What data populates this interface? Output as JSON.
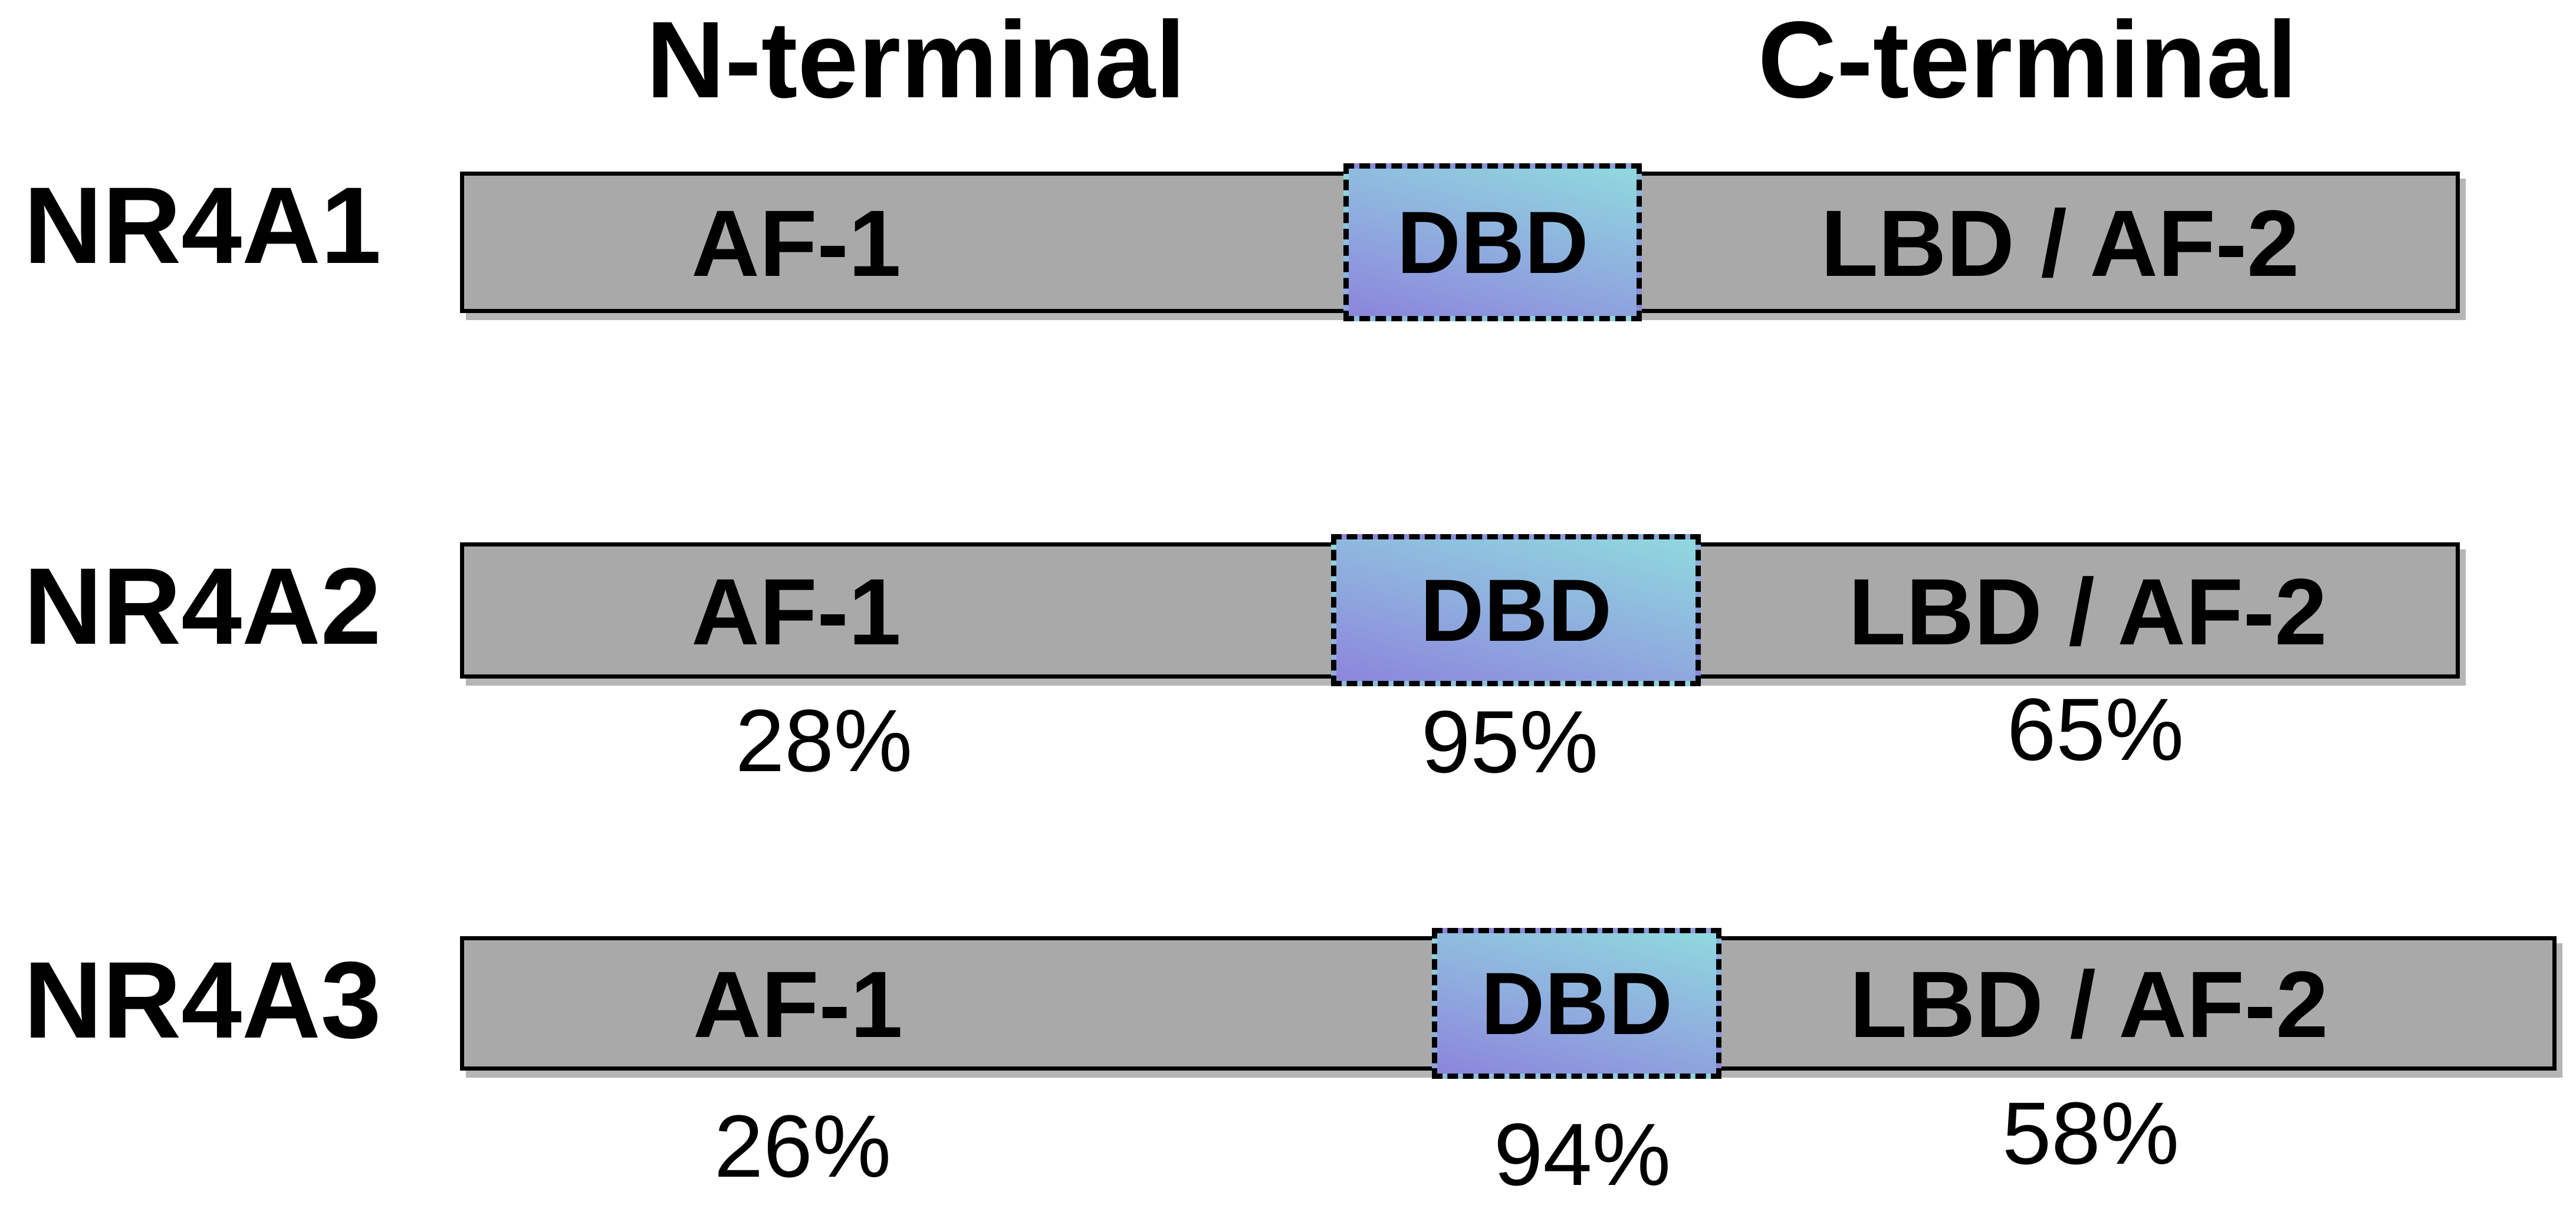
{
  "headers": {
    "n_terminal": "N-terminal",
    "c_terminal": "C-terminal"
  },
  "rows": [
    {
      "name": "NR4A1",
      "domains": {
        "af1": "AF-1",
        "dbd": "DBD",
        "lbd": "LBD / AF-2"
      }
    },
    {
      "name": "NR4A2",
      "domains": {
        "af1": "AF-1",
        "dbd": "DBD",
        "lbd": "LBD / AF-2"
      },
      "identity": {
        "af1": "28%",
        "dbd": "95%",
        "lbd": "65%"
      }
    },
    {
      "name": "NR4A3",
      "domains": {
        "af1": "AF-1",
        "dbd": "DBD",
        "lbd": "LBD / AF-2"
      },
      "identity": {
        "af1": "26%",
        "dbd": "94%",
        "lbd": "58%"
      }
    }
  ],
  "colors": {
    "bar_fill": "#a9a9a9",
    "bar_border": "#000000",
    "dbd_gradient_top": "#8fd9de",
    "dbd_gradient_middle": "#8faede",
    "dbd_gradient_bottom": "#8c85dc",
    "text": "#000000"
  }
}
